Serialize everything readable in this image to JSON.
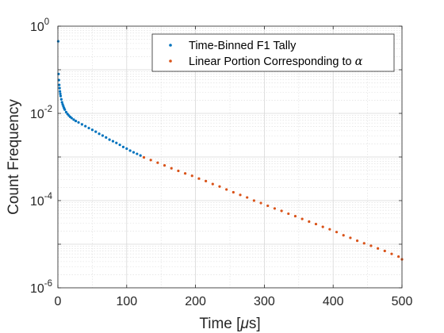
{
  "chart_data": {
    "type": "scatter",
    "xlabel": "Time [μs]",
    "ylabel": "Count Frequency",
    "xlim": [
      0,
      500
    ],
    "ylim": [
      1e-06,
      1
    ],
    "yscale": "log",
    "grid": true,
    "minor_grid": true,
    "legend_position": "top-right",
    "x_ticks": [
      {
        "value": 0,
        "label": "0"
      },
      {
        "value": 100,
        "label": "100"
      },
      {
        "value": 200,
        "label": "200"
      },
      {
        "value": 300,
        "label": "300"
      },
      {
        "value": 400,
        "label": "400"
      },
      {
        "value": 500,
        "label": "500"
      }
    ],
    "y_ticks": [
      {
        "value": 1,
        "base": "10",
        "exp": "0"
      },
      {
        "value": 0.01,
        "base": "10",
        "exp": "-2"
      },
      {
        "value": 0.0001,
        "base": "10",
        "exp": "-4"
      },
      {
        "value": 1e-06,
        "base": "10",
        "exp": "-6"
      }
    ],
    "series": [
      {
        "name": "Time-Binned F1 Tally",
        "color": "#0072BD",
        "marker": "dot",
        "x": [
          0.5,
          1,
          1.5,
          2,
          2.5,
          3,
          3.5,
          4,
          5,
          6,
          7,
          8,
          9,
          10,
          12,
          14,
          16,
          18,
          20,
          23,
          26,
          30,
          35,
          40,
          45,
          50,
          55,
          60,
          65,
          70,
          75,
          80,
          85,
          90,
          95,
          100,
          105,
          110,
          115,
          120
        ],
        "y": [
          0.45,
          0.08,
          0.058,
          0.045,
          0.038,
          0.032,
          0.028,
          0.025,
          0.021,
          0.018,
          0.016,
          0.0145,
          0.0132,
          0.0122,
          0.0107,
          0.0097,
          0.0089,
          0.0083,
          0.0078,
          0.0072,
          0.0067,
          0.0062,
          0.0056,
          0.0051,
          0.0046,
          0.0042,
          0.0038,
          0.0034,
          0.0031,
          0.0028,
          0.0025,
          0.0023,
          0.0021,
          0.0019,
          0.0017,
          0.00155,
          0.0014,
          0.00128,
          0.00118,
          0.00108
        ]
      },
      {
        "name": "Linear Portion Corresponding to α",
        "color": "#D95319",
        "marker": "dot",
        "x": [
          125,
          135,
          145,
          155,
          165,
          175,
          185,
          195,
          205,
          215,
          225,
          235,
          245,
          255,
          265,
          275,
          285,
          295,
          305,
          315,
          325,
          335,
          345,
          355,
          365,
          375,
          385,
          395,
          405,
          415,
          425,
          435,
          445,
          455,
          465,
          475,
          485,
          495,
          500
        ],
        "y": [
          0.00098,
          0.00085,
          0.00074,
          0.00064,
          0.00055,
          0.00048,
          0.00042,
          0.00037,
          0.00032,
          0.00028,
          0.00024,
          0.00021,
          0.00018,
          0.000155,
          0.000135,
          0.000118,
          0.0001,
          8.8e-05,
          7.6e-05,
          6.6e-05,
          5.8e-05,
          5e-05,
          4.4e-05,
          3.8e-05,
          3.3e-05,
          2.9e-05,
          2.5e-05,
          2.2e-05,
          1.9e-05,
          1.6e-05,
          1.4e-05,
          1.2e-05,
          1.05e-05,
          9.2e-06,
          8e-06,
          7e-06,
          6e-06,
          5.2e-06,
          4.5e-06
        ]
      }
    ]
  }
}
